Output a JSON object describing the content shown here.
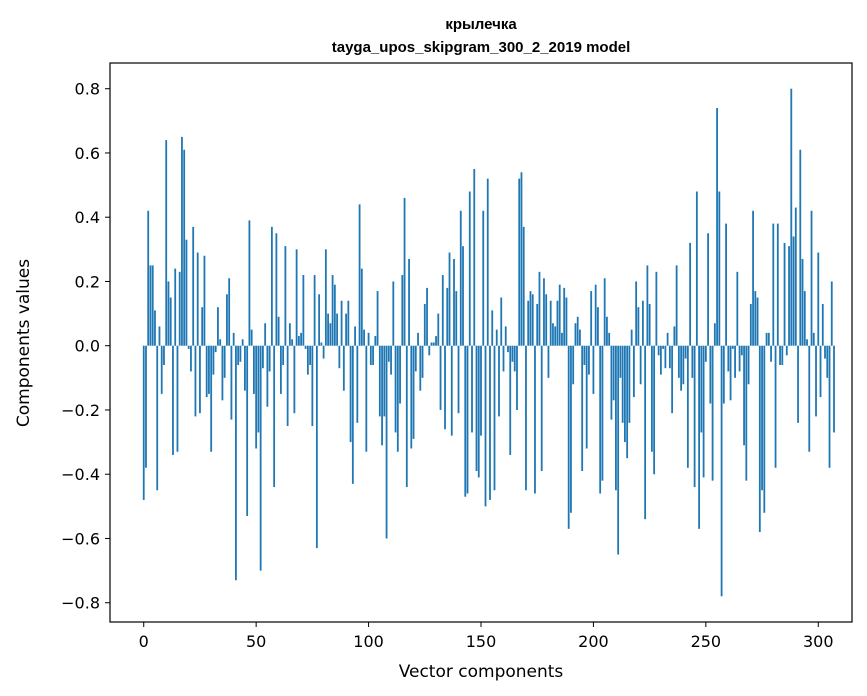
{
  "chart_data": {
    "type": "bar",
    "title": "крылечка",
    "subtitle": "tayga_upos_skipgram_300_2_2019 model",
    "xlabel": "Vector components",
    "ylabel": "Components values",
    "xlim": [
      -15,
      315
    ],
    "ylim": [
      -0.86,
      0.88
    ],
    "xticks": [
      0,
      50,
      100,
      150,
      200,
      250,
      300
    ],
    "xtick_labels": [
      "0",
      "50",
      "100",
      "150",
      "200",
      "250",
      "300"
    ],
    "yticks": [
      -0.8,
      -0.6,
      -0.4,
      -0.2,
      0.0,
      0.2,
      0.4,
      0.6,
      0.8
    ],
    "ytick_labels": [
      "−0.8",
      "−0.6",
      "−0.4",
      "−0.2",
      "0.0",
      "0.2",
      "0.4",
      "0.6",
      "0.8"
    ],
    "grid": false,
    "bar_color": "#1f77b4",
    "x_start": 0,
    "values": [
      -0.48,
      -0.38,
      0.42,
      0.25,
      0.25,
      0.11,
      -0.45,
      0.06,
      -0.15,
      -0.06,
      0.64,
      0.2,
      0.15,
      -0.34,
      0.24,
      -0.33,
      0.23,
      0.65,
      0.61,
      0.33,
      -0.01,
      -0.08,
      0.37,
      -0.22,
      0.29,
      -0.21,
      0.12,
      0.28,
      -0.16,
      -0.15,
      -0.33,
      -0.09,
      -0.02,
      0.12,
      0.02,
      -0.17,
      -0.1,
      0.16,
      0.21,
      -0.23,
      0.04,
      -0.73,
      -0.06,
      -0.05,
      0.02,
      -0.14,
      -0.53,
      0.39,
      0.05,
      -0.15,
      -0.32,
      -0.27,
      -0.7,
      -0.07,
      0.07,
      -0.19,
      -0.08,
      0.37,
      -0.44,
      0.35,
      0.09,
      -0.15,
      -0.06,
      0.31,
      -0.25,
      0.07,
      0.02,
      -0.21,
      0.3,
      0.03,
      0.04,
      0.22,
      -0.01,
      -0.09,
      -0.06,
      -0.25,
      0.22,
      -0.63,
      0.16,
      0.01,
      -0.04,
      0.3,
      0.1,
      0.07,
      0.22,
      0.19,
      0.1,
      -0.07,
      0.14,
      -0.14,
      0.1,
      0.14,
      -0.3,
      -0.43,
      0.06,
      -0.24,
      0.44,
      0.24,
      0.05,
      -0.33,
      0.04,
      -0.06,
      -0.06,
      0.03,
      0.17,
      -0.22,
      -0.31,
      -0.22,
      -0.6,
      -0.05,
      -0.09,
      0.2,
      -0.27,
      -0.33,
      -0.18,
      0.22,
      0.46,
      -0.44,
      0.27,
      -0.32,
      -0.29,
      -0.08,
      0.04,
      -0.14,
      -0.1,
      0.13,
      0.18,
      -0.03,
      0.01,
      0.01,
      0.03,
      0.1,
      -0.2,
      0.22,
      -0.26,
      0.18,
      0.29,
      -0.28,
      0.27,
      0.17,
      -0.21,
      0.42,
      0.31,
      -0.47,
      -0.46,
      0.48,
      -0.27,
      0.55,
      -0.39,
      -0.41,
      -0.28,
      0.42,
      -0.5,
      0.52,
      -0.48,
      0.11,
      -0.45,
      0.05,
      -0.22,
      0.15,
      -0.08,
      0.06,
      -0.02,
      -0.34,
      -0.05,
      -0.08,
      -0.2,
      0.52,
      0.54,
      0.37,
      -0.45,
      0.14,
      0.17,
      0.16,
      -0.46,
      0.13,
      0.23,
      -0.39,
      0.21,
      0.16,
      -0.1,
      0.14,
      0.07,
      0.06,
      0.14,
      0.19,
      0.04,
      0.18,
      0.15,
      -0.57,
      -0.52,
      -0.12,
      0.07,
      0.09,
      0.05,
      -0.39,
      -0.06,
      -0.32,
      -0.09,
      0.17,
      -0.15,
      0.19,
      0.12,
      -0.46,
      -0.42,
      0.21,
      0.09,
      0.04,
      -0.23,
      -0.17,
      -0.45,
      -0.65,
      -0.1,
      -0.24,
      -0.3,
      -0.35,
      -0.24,
      0.05,
      -0.16,
      0.2,
      0.12,
      -0.12,
      0.14,
      -0.54,
      0.25,
      0.13,
      -0.33,
      -0.4,
      0.23,
      -0.03,
      -0.09,
      -0.01,
      -0.07,
      0.04,
      -0.07,
      -0.21,
      0.06,
      0.25,
      -0.1,
      -0.14,
      -0.12,
      -0.04,
      -0.38,
      0.32,
      -0.1,
      -0.44,
      0.48,
      -0.57,
      -0.27,
      -0.41,
      -0.05,
      0.35,
      -0.18,
      -0.42,
      0.07,
      0.74,
      0.48,
      -0.78,
      -0.18,
      0.38,
      -0.08,
      -0.17,
      -0.01,
      -0.1,
      0.23,
      -0.08,
      -0.03,
      -0.31,
      -0.42,
      -0.12,
      0.13,
      0.42,
      0.17,
      0.15,
      -0.58,
      -0.45,
      -0.52,
      0.04,
      0.04,
      -0.05,
      0.38,
      -0.38,
      0.38,
      -0.06,
      -0.06,
      0.32,
      -0.03,
      0.31,
      0.8,
      0.34,
      0.43,
      -0.24,
      0.61,
      0.27,
      0.17,
      0.02,
      -0.33,
      0.42,
      0.04,
      -0.22,
      0.29,
      -0.16,
      0.13,
      -0.04,
      -0.1,
      -0.38,
      0.2,
      -0.27
    ]
  }
}
